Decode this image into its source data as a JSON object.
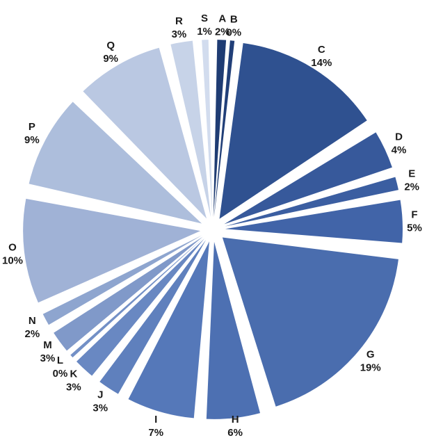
{
  "chart_data": {
    "type": "pie",
    "title": "",
    "legend": "none",
    "slices": [
      {
        "name": "A",
        "label": "2%",
        "value": 1.5,
        "color": "#1f3c73"
      },
      {
        "name": "B",
        "label": "0%",
        "value": 0.3,
        "color": "#213f78"
      },
      {
        "name": "C",
        "label": "14%",
        "value": 14.3,
        "color": "#2f5190"
      },
      {
        "name": "D",
        "label": "4%",
        "value": 4.2,
        "color": "#37599b"
      },
      {
        "name": "E",
        "label": "2%",
        "value": 1.9,
        "color": "#3b5ea1"
      },
      {
        "name": "F",
        "label": "5%",
        "value": 4.6,
        "color": "#4164a8"
      },
      {
        "name": "G",
        "label": "19%",
        "value": 19.0,
        "color": "#4a6dae"
      },
      {
        "name": "H",
        "label": "6%",
        "value": 5.6,
        "color": "#4d70b2"
      },
      {
        "name": "I",
        "label": "7%",
        "value": 6.9,
        "color": "#5578b9"
      },
      {
        "name": "J",
        "label": "3%",
        "value": 2.7,
        "color": "#5f80bd"
      },
      {
        "name": "K",
        "label": "3%",
        "value": 2.6,
        "color": "#6988c2"
      },
      {
        "name": "L",
        "label": "0%",
        "value": 0.4,
        "color": "#7390c6"
      },
      {
        "name": "M",
        "label": "3%",
        "value": 2.7,
        "color": "#8099c9"
      },
      {
        "name": "N",
        "label": "2%",
        "value": 1.8,
        "color": "#8ea5cf"
      },
      {
        "name": "O",
        "label": "10%",
        "value": 10.3,
        "color": "#a0b2d6"
      },
      {
        "name": "P",
        "label": "9%",
        "value": 9.2,
        "color": "#adbedc"
      },
      {
        "name": "Q",
        "label": "9%",
        "value": 8.7,
        "color": "#bac8e2"
      },
      {
        "name": "R",
        "label": "3%",
        "value": 2.7,
        "color": "#c7d3e8"
      },
      {
        "name": "S",
        "label": "1%",
        "value": 1.3,
        "color": "#d2dcee"
      }
    ]
  }
}
